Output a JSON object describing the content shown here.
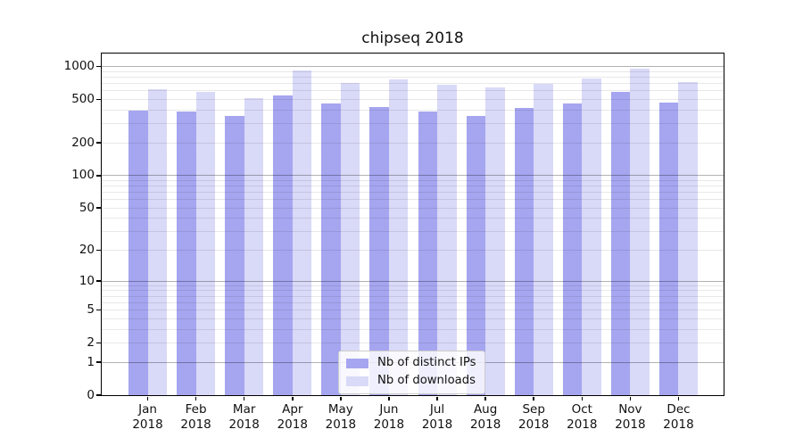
{
  "chart_data": {
    "type": "bar",
    "title": "chipseq 2018",
    "categories": [
      "Jan",
      "Feb",
      "Mar",
      "Apr",
      "May",
      "Jun",
      "Jul",
      "Aug",
      "Sep",
      "Oct",
      "Nov",
      "Dec"
    ],
    "category_year": "2018",
    "series": [
      {
        "name": "Nb of distinct IPs",
        "color": "#a5a5f0",
        "values": [
          395,
          390,
          355,
          540,
          460,
          425,
          390,
          355,
          415,
          455,
          590,
          470
        ]
      },
      {
        "name": "Nb of downloads",
        "color": "#d9d9f8",
        "values": [
          615,
          580,
          515,
          920,
          700,
          755,
          680,
          645,
          690,
          780,
          945,
          715
        ]
      }
    ],
    "xlabel": "",
    "ylabel": "",
    "yscale": "log1p",
    "yticks": [
      0,
      1,
      2,
      5,
      10,
      20,
      50,
      100,
      200,
      500,
      1000
    ],
    "ylim": [
      0,
      1310
    ],
    "grid": {
      "on": true,
      "major_ticks": [
        1,
        10,
        100,
        1000
      ],
      "minor_multipliers": [
        2,
        3,
        4,
        5,
        6,
        7,
        8,
        9
      ],
      "major_color": "rgba(0,0,0,0.30)",
      "minor_color": "rgba(0,0,0,0.09)"
    },
    "legend": {
      "position": "lower center",
      "entries": [
        "Nb of distinct IPs",
        "Nb of downloads"
      ]
    }
  }
}
